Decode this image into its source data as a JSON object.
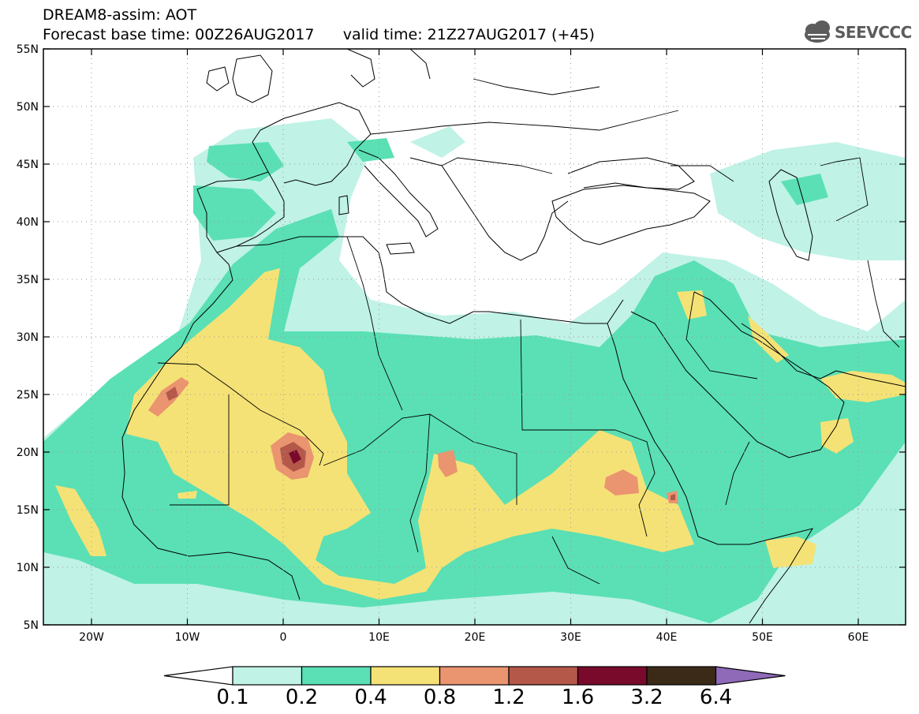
{
  "header": {
    "line1": "DREAM8-assim: AOT",
    "line2": "Forecast base time: 00Z26AUG2017      valid time: 21Z27AUG2017 (+45)"
  },
  "logo": {
    "text": "SEEVCCC",
    "icon": "cloud-icon"
  },
  "axes": {
    "lat_labels": [
      "55N",
      "50N",
      "45N",
      "40N",
      "35N",
      "30N",
      "25N",
      "20N",
      "15N",
      "10N",
      "5N"
    ],
    "lon_labels": [
      "20W",
      "10W",
      "0",
      "10E",
      "20E",
      "30E",
      "40E",
      "50E",
      "60E"
    ]
  },
  "colorbar": {
    "labels": [
      "0.1",
      "0.2",
      "0.4",
      "0.8",
      "1.2",
      "1.6",
      "3.2",
      "6.4"
    ],
    "colors": [
      "#c0f2e6",
      "#5ae0b4",
      "#f5e276",
      "#ea9470",
      "#b4584a",
      "#7a0a2c",
      "#3c2a18",
      "#8f6ab8"
    ]
  }
}
